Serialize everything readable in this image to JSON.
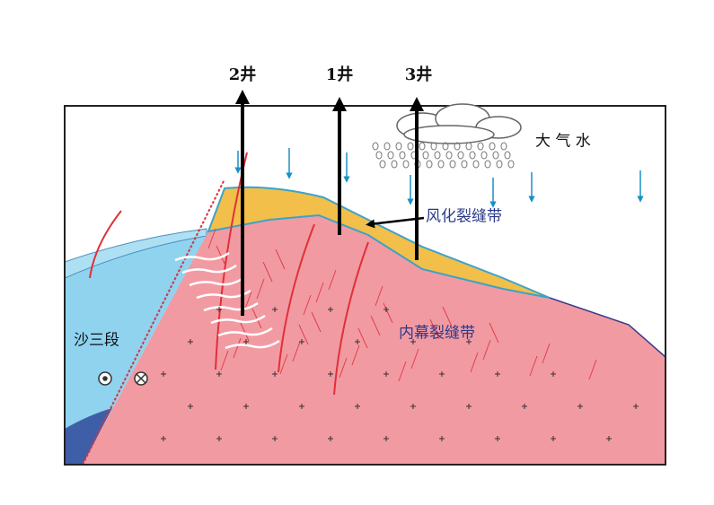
{
  "wells": [
    "2井",
    "1井",
    "3井"
  ],
  "atmospheric_water": "大 气 水",
  "weathering_zone": "风化裂缝带",
  "inner_zone": "内幕裂缝带",
  "formation": "沙三段"
}
